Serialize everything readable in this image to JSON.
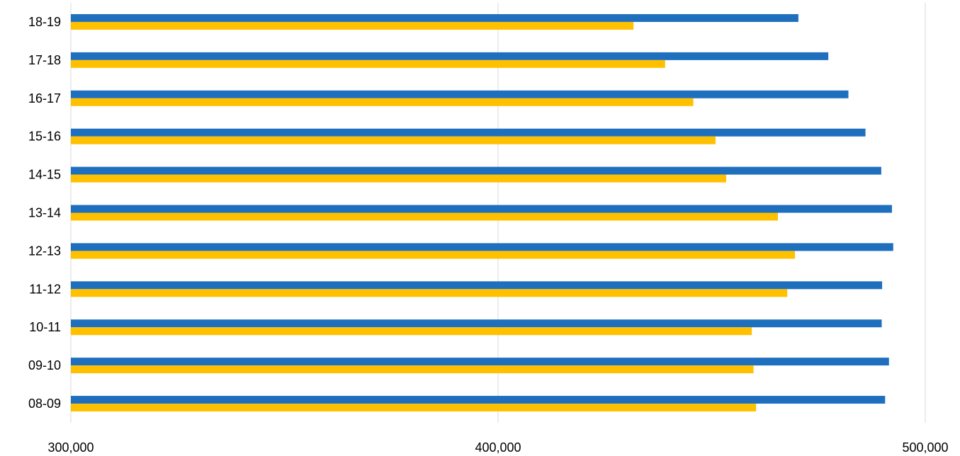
{
  "chart_data": {
    "type": "bar",
    "orientation": "horizontal",
    "categories": [
      "08-09",
      "09-10",
      "10-11",
      "11-12",
      "12-13",
      "13-14",
      "14-15",
      "15-16",
      "16-17",
      "17-18",
      "18-19"
    ],
    "series": [
      {
        "color": "#1F6FBF",
        "values": [
          490600,
          491500,
          489800,
          489900,
          492500,
          492200,
          489700,
          486000,
          482000,
          477300,
          470300
        ]
      },
      {
        "color": "#FFC000",
        "values": [
          460400,
          459800,
          459400,
          467700,
          469500,
          465500,
          453400,
          450900,
          445700,
          439100,
          431700
        ]
      }
    ],
    "xlim": [
      300000,
      500000
    ],
    "xticks": [
      "300,000",
      "400,000",
      "500,000"
    ],
    "grid": "vertical",
    "legend": "none"
  }
}
